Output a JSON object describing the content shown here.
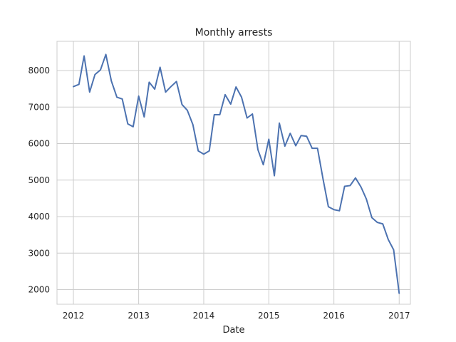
{
  "chart_data": {
    "type": "line",
    "title": "Monthly arrests",
    "xlabel": "Date",
    "ylabel": "",
    "grid": true,
    "legend": "none",
    "series_color": "#4c72b0",
    "xlim": [
      "2011-10-01",
      "2017-03-05"
    ],
    "ylim": [
      1600,
      8800
    ],
    "x_ticks": [
      "2012",
      "2013",
      "2014",
      "2015",
      "2016",
      "2017"
    ],
    "y_ticks": [
      "2000",
      "3000",
      "4000",
      "5000",
      "6000",
      "7000",
      "8000"
    ],
    "series": [
      {
        "x": [
          "2012-01",
          "2012-02",
          "2012-03",
          "2012-04",
          "2012-05",
          "2012-06",
          "2012-07",
          "2012-08",
          "2012-09",
          "2012-10",
          "2012-11",
          "2012-12",
          "2013-01",
          "2013-02",
          "2013-03",
          "2013-04",
          "2013-05",
          "2013-06",
          "2013-07",
          "2013-08",
          "2013-09",
          "2013-10",
          "2013-11",
          "2013-12",
          "2014-01",
          "2014-02",
          "2014-03",
          "2014-04",
          "2014-05",
          "2014-06",
          "2014-07",
          "2014-08",
          "2014-09",
          "2014-10",
          "2014-11",
          "2014-12",
          "2015-01",
          "2015-02",
          "2015-03",
          "2015-04",
          "2015-05",
          "2015-06",
          "2015-07",
          "2015-08",
          "2015-09",
          "2015-10",
          "2015-11",
          "2015-12",
          "2016-01",
          "2016-02",
          "2016-03",
          "2016-04",
          "2016-05",
          "2016-06",
          "2016-07",
          "2016-08",
          "2016-09",
          "2016-10",
          "2016-11",
          "2016-12",
          "2017-01"
        ],
        "y": [
          7560,
          7620,
          8400,
          7410,
          7890,
          8020,
          8440,
          7710,
          7270,
          7220,
          6540,
          6460,
          7300,
          6730,
          7680,
          7490,
          8090,
          7410,
          7560,
          7700,
          7070,
          6910,
          6520,
          5800,
          5710,
          5800,
          6790,
          6790,
          7340,
          7080,
          7550,
          7270,
          6700,
          6810,
          5830,
          5420,
          6120,
          5120,
          6560,
          5930,
          6280,
          5940,
          6220,
          6200,
          5870,
          5870,
          5030,
          4270,
          4190,
          4160,
          4830,
          4850,
          5060,
          4810,
          4480,
          3970,
          3840,
          3800,
          3370,
          3090,
          1900
        ]
      }
    ]
  }
}
